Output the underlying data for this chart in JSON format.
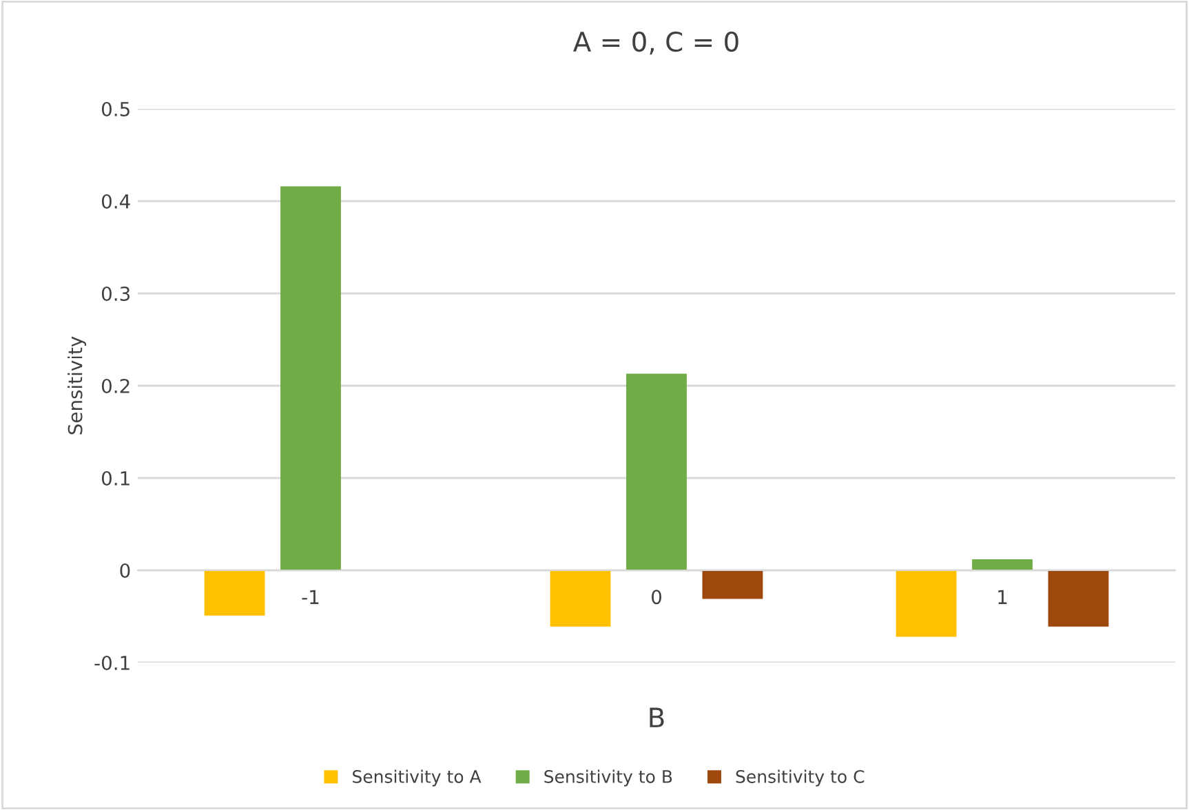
{
  "chart_data": {
    "type": "bar",
    "title": "A = 0, C = 0",
    "xlabel": "B",
    "ylabel": "Sensitivity",
    "categories": [
      "-1",
      "0",
      "1"
    ],
    "series": [
      {
        "name": "Sensitivity to A",
        "color": "#ffc000",
        "values": [
          -0.049,
          -0.061,
          -0.072
        ]
      },
      {
        "name": "Sensitivity to B",
        "color": "#70ad47",
        "values": [
          0.416,
          0.213,
          0.012
        ]
      },
      {
        "name": "Sensitivity to C",
        "color": "#9e480e",
        "values": [
          0,
          -0.031,
          -0.061
        ]
      }
    ],
    "ylim": [
      -0.1,
      0.5
    ],
    "yticks": [
      -0.1,
      0,
      0.1,
      0.2,
      0.3,
      0.4,
      0.5
    ],
    "grid": "y",
    "legend": "bottom"
  }
}
